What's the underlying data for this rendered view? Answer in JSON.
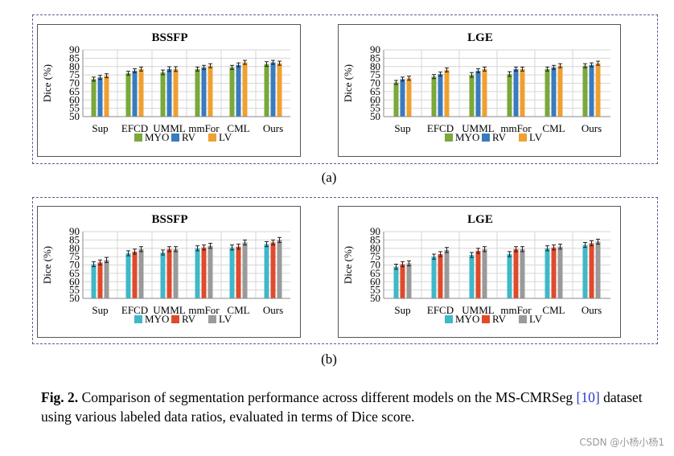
{
  "panel_labels": [
    "(a)",
    "(b)"
  ],
  "caption": {
    "figure_label": "Fig. 2.",
    "text_before_ref": " Comparison of segmentation performance across different models on the MS-CMRSeg ",
    "ref": "[10]",
    "text_after_ref": " dataset using various labeled data ratios, evaluated in terms of Dice score."
  },
  "watermark": "CSDN @小杨小杨1",
  "chart_data": [
    {
      "type": "bar",
      "panel": "(a)",
      "title": "BSSFP",
      "ylabel": "Dice (%)",
      "xlabel": "",
      "ylim": [
        50,
        90
      ],
      "yticks": [
        50,
        55,
        60,
        65,
        70,
        75,
        80,
        85,
        90
      ],
      "grid": true,
      "legend": "bottom",
      "colors": [
        "#7aa83a",
        "#3a7bbf",
        "#f0a030"
      ],
      "categories": [
        "Sup",
        "EFCD",
        "UMML",
        "mmFor",
        "CML",
        "Ours"
      ],
      "series": [
        {
          "name": "MYO",
          "values": [
            72.5,
            76.0,
            76.5,
            78.5,
            79.5,
            81.5
          ],
          "errors": [
            1.2,
            1.2,
            1.4,
            1.2,
            1.2,
            1.4
          ]
        },
        {
          "name": "RV",
          "values": [
            73.5,
            77.5,
            78.5,
            79.5,
            81.0,
            82.5
          ],
          "errors": [
            1.2,
            1.2,
            1.4,
            1.2,
            1.2,
            1.2
          ]
        },
        {
          "name": "LV",
          "values": [
            74.5,
            78.5,
            78.5,
            80.5,
            82.5,
            82.0
          ],
          "errors": [
            1.2,
            1.2,
            1.4,
            1.2,
            1.2,
            1.2
          ]
        }
      ]
    },
    {
      "type": "bar",
      "panel": "(a)",
      "title": "LGE",
      "ylabel": "Dice (%)",
      "xlabel": "",
      "ylim": [
        50,
        90
      ],
      "yticks": [
        50,
        55,
        60,
        65,
        70,
        75,
        80,
        85,
        90
      ],
      "grid": true,
      "legend": "bottom",
      "colors": [
        "#7aa83a",
        "#3a7bbf",
        "#f0a030"
      ],
      "categories": [
        "Sup",
        "EFCD",
        "UMML",
        "mmFor",
        "CML",
        "Ours"
      ],
      "series": [
        {
          "name": "MYO",
          "values": [
            70.5,
            74.0,
            75.0,
            75.5,
            78.5,
            80.5
          ],
          "errors": [
            1.2,
            1.2,
            1.4,
            1.4,
            1.2,
            1.2
          ]
        },
        {
          "name": "RV",
          "values": [
            72.5,
            75.5,
            77.5,
            78.5,
            79.5,
            81.0
          ],
          "errors": [
            1.2,
            1.2,
            1.2,
            1.2,
            1.2,
            1.2
          ]
        },
        {
          "name": "LV",
          "values": [
            73.0,
            78.0,
            78.5,
            78.5,
            80.5,
            82.0
          ],
          "errors": [
            1.2,
            1.2,
            1.2,
            1.2,
            1.2,
            1.2
          ]
        }
      ]
    },
    {
      "type": "bar",
      "panel": "(b)",
      "title": "BSSFP",
      "ylabel": "Dice (%)",
      "xlabel": "",
      "ylim": [
        50,
        90
      ],
      "yticks": [
        50,
        55,
        60,
        65,
        70,
        75,
        80,
        85,
        90
      ],
      "grid": true,
      "legend": "bottom",
      "colors": [
        "#3fb8c8",
        "#e04a2a",
        "#9a9a9a"
      ],
      "categories": [
        "Sup",
        "EFCD",
        "UMML",
        "mmFor",
        "CML",
        "Ours"
      ],
      "series": [
        {
          "name": "MYO",
          "values": [
            70.5,
            77.0,
            77.5,
            80.0,
            80.5,
            82.5
          ],
          "errors": [
            1.5,
            1.5,
            1.5,
            1.5,
            1.5,
            1.5
          ]
        },
        {
          "name": "RV",
          "values": [
            71.5,
            78.0,
            79.5,
            80.5,
            81.0,
            83.5
          ],
          "errors": [
            1.5,
            1.5,
            1.5,
            1.5,
            1.5,
            1.5
          ]
        },
        {
          "name": "LV",
          "values": [
            73.0,
            79.5,
            79.5,
            81.5,
            83.5,
            85.0
          ],
          "errors": [
            1.5,
            1.5,
            1.5,
            1.5,
            1.5,
            1.5
          ]
        }
      ]
    },
    {
      "type": "bar",
      "panel": "(b)",
      "title": "LGE",
      "ylabel": "Dice (%)",
      "xlabel": "",
      "ylim": [
        50,
        90
      ],
      "yticks": [
        50,
        55,
        60,
        65,
        70,
        75,
        80,
        85,
        90
      ],
      "grid": true,
      "legend": "bottom",
      "colors": [
        "#3fb8c8",
        "#e04a2a",
        "#9a9a9a"
      ],
      "categories": [
        "Sup",
        "EFCD",
        "UMML",
        "mmFor",
        "CML",
        "Ours"
      ],
      "series": [
        {
          "name": "MYO",
          "values": [
            69.0,
            75.0,
            76.0,
            76.5,
            80.0,
            82.0
          ],
          "errors": [
            1.5,
            1.5,
            1.5,
            1.5,
            1.5,
            1.5
          ]
        },
        {
          "name": "RV",
          "values": [
            70.5,
            76.5,
            78.5,
            79.5,
            80.5,
            83.0
          ],
          "errors": [
            1.5,
            1.5,
            1.5,
            1.5,
            1.5,
            1.5
          ]
        },
        {
          "name": "LV",
          "values": [
            71.0,
            79.0,
            79.5,
            79.5,
            81.0,
            84.0
          ],
          "errors": [
            1.5,
            1.5,
            1.5,
            1.5,
            1.5,
            1.5
          ]
        }
      ]
    }
  ]
}
